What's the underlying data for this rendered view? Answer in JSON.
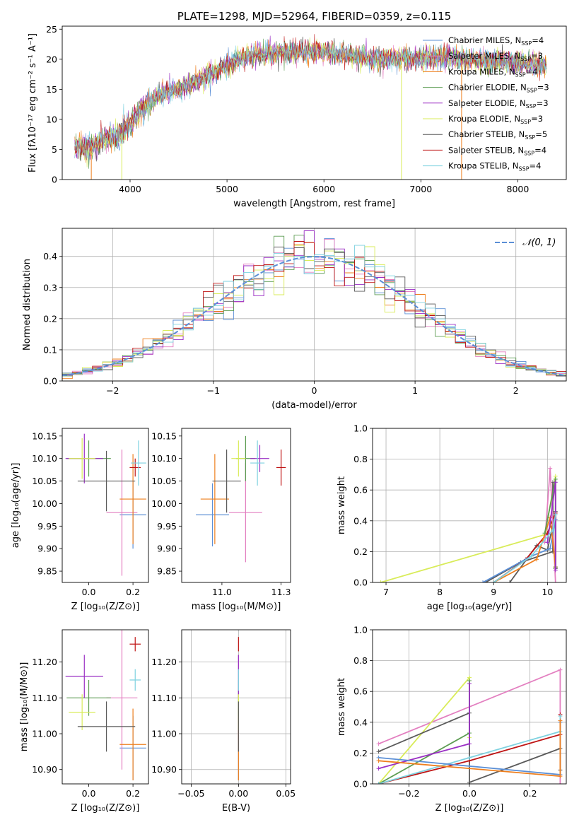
{
  "figure": {
    "title": "PLATE=1298, MJD=52964, FIBERID=0359, z=0.115"
  },
  "colors": {
    "chabrier_miles": "#5b8fd6",
    "salpeter_miles": "#e37fc0",
    "kroupa_miles": "#ee7f1e",
    "chabrier_elodie": "#5c9c52",
    "salpeter_elodie": "#9a2fc4",
    "kroupa_elodie": "#d9ec5a",
    "chabrier_stelib": "#5a5a5a",
    "salpeter_stelib": "#bf1515",
    "kroupa_stelib": "#7fd2e0",
    "grid": "#b0b0b0"
  },
  "chart_data": [
    {
      "id": "spectrum",
      "type": "line",
      "title": "PLATE=1298, MJD=52964, FIBERID=0359, z=0.115",
      "xlabel": "wavelength [Angstrom, rest frame]",
      "ylabel": "Flux [fλ10⁻¹⁷ erg cm⁻² s⁻¹ A⁻¹]",
      "xlim": [
        3300,
        8500
      ],
      "ylim": [
        0,
        25.5
      ],
      "xticks": [
        4000,
        5000,
        6000,
        7000,
        8000
      ],
      "yticks": [
        0,
        5,
        10,
        15,
        20,
        25
      ],
      "grid": false,
      "legend_position": "upper-right",
      "continuum_x": [
        3430,
        3600,
        3800,
        3950,
        4100,
        4300,
        4500,
        4700,
        4900,
        5100,
        5300,
        5500,
        5700,
        5900,
        6100,
        6300,
        6500,
        6700,
        6900,
        7100,
        7300,
        7500,
        7700,
        7900,
        8100,
        8300
      ],
      "continuum_y": [
        5.2,
        5.5,
        7.0,
        8.0,
        11.5,
        14.0,
        15.0,
        16.5,
        18.0,
        20.0,
        20.8,
        21.0,
        21.3,
        21.3,
        21.0,
        20.5,
        20.2,
        20.0,
        20.1,
        20.3,
        20.3,
        19.9,
        19.7,
        19.5,
        19.3,
        19.0
      ],
      "series": [
        {
          "name": "Chabrier MILES, N",
          "sub": "SSP",
          "suffix": "=4",
          "color_key": "chabrier_miles"
        },
        {
          "name": "Salpeter MILES, N",
          "sub": "SSP",
          "suffix": "=3",
          "color_key": "salpeter_miles"
        },
        {
          "name": "Kroupa MILES, N",
          "sub": "SSP",
          "suffix": "=4",
          "color_key": "kroupa_miles"
        },
        {
          "name": "Chabrier ELODIE, N",
          "sub": "SSP",
          "suffix": "=3",
          "color_key": "chabrier_elodie"
        },
        {
          "name": "Salpeter ELODIE, N",
          "sub": "SSP",
          "suffix": "=3",
          "color_key": "salpeter_elodie"
        },
        {
          "name": "Kroupa ELODIE, N",
          "sub": "SSP",
          "suffix": "=3",
          "color_key": "kroupa_elodie"
        },
        {
          "name": "Chabrier STELIB, N",
          "sub": "SSP",
          "suffix": "=5",
          "color_key": "chabrier_stelib"
        },
        {
          "name": "Salpeter STELIB, N",
          "sub": "SSP",
          "suffix": "=4",
          "color_key": "salpeter_stelib"
        },
        {
          "name": "Kroupa STELIB, N",
          "sub": "SSP",
          "suffix": "=4",
          "color_key": "kroupa_stelib"
        }
      ]
    },
    {
      "id": "residuals",
      "type": "line",
      "xlabel": "(data-model)/error",
      "ylabel": "Normed distribution",
      "xlim": [
        -2.5,
        2.5
      ],
      "ylim": [
        0,
        0.49
      ],
      "xticks": [
        -2,
        -1,
        0,
        1,
        2
      ],
      "yticks": [
        0.0,
        0.1,
        0.2,
        0.3,
        0.4
      ],
      "grid": true,
      "legend_position": "upper-right",
      "bin_width": 0.1,
      "gaussian_label": "𝒩(0, 1)"
    },
    {
      "id": "age_vs_Z",
      "type": "scatter",
      "xlabel": "Z [log₁₀(Z/Z⊙)]",
      "ylabel": "age  [log₁₀(age/yr)]",
      "xlim": [
        -0.12,
        0.27
      ],
      "ylim": [
        9.825,
        10.167
      ],
      "xticks": [
        0.0,
        0.2
      ],
      "yticks": [
        9.85,
        9.9,
        9.95,
        10.0,
        10.05,
        10.1,
        10.15
      ],
      "grid": false,
      "points": [
        {
          "color_key": "chabrier_miles",
          "x": 0.2,
          "xerr": 0.06,
          "y": 9.975,
          "yerr": 0.075
        },
        {
          "color_key": "salpeter_miles",
          "x": 0.15,
          "xerr": 0.07,
          "y": 9.98,
          "yerr": 0.14
        },
        {
          "color_key": "kroupa_miles",
          "x": 0.2,
          "xerr": 0.06,
          "y": 10.01,
          "yerr": 0.1
        },
        {
          "color_key": "chabrier_elodie",
          "x": 0.0,
          "xerr": 0.1,
          "y": 10.1,
          "yerr": 0.04
        },
        {
          "color_key": "salpeter_elodie",
          "x": -0.02,
          "xerr": 0.085,
          "y": 10.1,
          "yerr": 0.055
        },
        {
          "color_key": "kroupa_elodie",
          "x": -0.03,
          "xerr": 0.06,
          "y": 10.1,
          "yerr": 0.045
        },
        {
          "color_key": "chabrier_stelib",
          "x": 0.08,
          "xerr": 0.13,
          "y": 10.05,
          "yerr": 0.067
        },
        {
          "color_key": "salpeter_stelib",
          "x": 0.21,
          "xerr": 0.025,
          "y": 10.08,
          "yerr": 0.02
        },
        {
          "color_key": "kroupa_stelib",
          "x": 0.225,
          "xerr": 0.035,
          "y": 10.09,
          "yerr": 0.05
        }
      ]
    },
    {
      "id": "age_vs_mass",
      "type": "scatter",
      "xlabel": "mass [log₁₀(M/M⊙)]",
      "ylabel": "",
      "xlim": [
        10.83,
        11.29
      ],
      "ylim": [
        9.825,
        10.167
      ],
      "xticks": [
        11.0,
        11.25
      ],
      "yticks": [
        9.85,
        9.9,
        9.95,
        10.0,
        10.05,
        10.1,
        10.15
      ],
      "grid": false,
      "points": [
        {
          "color_key": "chabrier_miles",
          "x": 10.96,
          "xerr": 0.07,
          "y": 9.975,
          "yerr": 0.07
        },
        {
          "color_key": "salpeter_miles",
          "x": 11.1,
          "xerr": 0.07,
          "y": 9.98,
          "yerr": 0.11
        },
        {
          "color_key": "kroupa_miles",
          "x": 10.97,
          "xerr": 0.06,
          "y": 10.01,
          "yerr": 0.1
        },
        {
          "color_key": "chabrier_elodie",
          "x": 11.1,
          "xerr": 0.04,
          "y": 10.1,
          "yerr": 0.05
        },
        {
          "color_key": "salpeter_elodie",
          "x": 11.16,
          "xerr": 0.04,
          "y": 10.1,
          "yerr": 0.03
        },
        {
          "color_key": "kroupa_elodie",
          "x": 11.07,
          "xerr": 0.03,
          "y": 10.1,
          "yerr": 0.04
        },
        {
          "color_key": "chabrier_stelib",
          "x": 11.02,
          "xerr": 0.06,
          "y": 10.05,
          "yerr": 0.07
        },
        {
          "color_key": "salpeter_stelib",
          "x": 11.25,
          "xerr": 0.02,
          "y": 10.08,
          "yerr": 0.04
        },
        {
          "color_key": "kroupa_stelib",
          "x": 11.15,
          "xerr": 0.03,
          "y": 10.09,
          "yerr": 0.05
        }
      ]
    },
    {
      "id": "weight_vs_age",
      "type": "line",
      "xlabel": "age  [log₁₀(age/yr)]",
      "ylabel": "mass weight",
      "xlim": [
        6.75,
        10.35
      ],
      "ylim": [
        0,
        1
      ],
      "xticks": [
        7,
        8,
        9,
        10
      ],
      "yticks": [
        0.0,
        0.2,
        0.4,
        0.6,
        0.8,
        1.0
      ],
      "grid": true,
      "series": [
        {
          "color_key": "kroupa_elodie",
          "x": [
            6.9,
            9.95,
            10.15,
            10.15
          ],
          "y": [
            0.0,
            0.31,
            0.69,
            0.1
          ]
        },
        {
          "color_key": "chabrier_stelib",
          "x": [
            9.3,
            9.8,
            10.0,
            10.15,
            10.15
          ],
          "y": [
            0.0,
            0.24,
            0.21,
            0.46,
            0.09
          ]
        },
        {
          "color_key": "chabrier_stelib",
          "x": [
            8.85,
            9.5,
            10.1,
            10.1
          ],
          "y": [
            0.0,
            0.13,
            0.2,
            0.65
          ]
        },
        {
          "color_key": "salpeter_stelib",
          "x": [
            9.0,
            9.6,
            10.0,
            10.15,
            10.15
          ],
          "y": [
            0.0,
            0.15,
            0.32,
            0.45,
            0.1
          ]
        },
        {
          "color_key": "salpeter_miles",
          "x": [
            9.95,
            10.05,
            10.15
          ],
          "y": [
            0.26,
            0.74,
            0.0
          ]
        },
        {
          "color_key": "chabrier_miles",
          "x": [
            8.8,
            9.7,
            10.05,
            10.15
          ],
          "y": [
            0.0,
            0.17,
            0.22,
            0.41
          ]
        },
        {
          "color_key": "kroupa_miles",
          "x": [
            9.0,
            9.8,
            10.05,
            10.15
          ],
          "y": [
            0.0,
            0.15,
            0.42,
            0.1
          ]
        },
        {
          "color_key": "chabrier_elodie",
          "x": [
            9.95,
            10.15,
            10.15
          ],
          "y": [
            0.32,
            0.67,
            0.1
          ]
        },
        {
          "color_key": "salpeter_elodie",
          "x": [
            10.0,
            10.15,
            10.15
          ],
          "y": [
            0.26,
            0.65,
            0.08
          ]
        },
        {
          "color_key": "kroupa_stelib",
          "x": [
            9.0,
            9.7,
            10.1,
            10.15
          ],
          "y": [
            0.0,
            0.17,
            0.34,
            0.44
          ]
        }
      ]
    },
    {
      "id": "mass_vs_Z",
      "type": "scatter",
      "xlabel": "Z [log₁₀(Z/Z⊙)]",
      "ylabel": "mass [log₁₀(M/M⊙)]",
      "xlim": [
        -0.12,
        0.27
      ],
      "ylim": [
        10.86,
        11.29
      ],
      "xticks": [
        0.0,
        0.2
      ],
      "yticks": [
        10.9,
        11.0,
        11.1,
        11.2
      ],
      "grid": false,
      "points": [
        {
          "color_key": "chabrier_miles",
          "x": 0.2,
          "xerr": 0.06,
          "y": 10.96,
          "yerr": 0.09
        },
        {
          "color_key": "salpeter_miles",
          "x": 0.15,
          "xerr": 0.07,
          "y": 11.1,
          "yerr": 0.2
        },
        {
          "color_key": "kroupa_miles",
          "x": 0.2,
          "xerr": 0.06,
          "y": 10.97,
          "yerr": 0.1
        },
        {
          "color_key": "chabrier_elodie",
          "x": 0.0,
          "xerr": 0.1,
          "y": 11.1,
          "yerr": 0.05
        },
        {
          "color_key": "salpeter_elodie",
          "x": -0.02,
          "xerr": 0.085,
          "y": 11.16,
          "yerr": 0.06
        },
        {
          "color_key": "kroupa_elodie",
          "x": -0.03,
          "xerr": 0.06,
          "y": 11.06,
          "yerr": 0.05
        },
        {
          "color_key": "chabrier_stelib",
          "x": 0.08,
          "xerr": 0.13,
          "y": 11.02,
          "yerr": 0.07
        },
        {
          "color_key": "salpeter_stelib",
          "x": 0.21,
          "xerr": 0.025,
          "y": 11.25,
          "yerr": 0.02
        },
        {
          "color_key": "kroupa_stelib",
          "x": 0.21,
          "xerr": 0.025,
          "y": 11.15,
          "yerr": 0.03
        }
      ]
    },
    {
      "id": "mass_vs_EBV",
      "type": "scatter",
      "xlabel": "E(B-V)",
      "ylabel": "",
      "xlim": [
        -0.06,
        0.055
      ],
      "ylim": [
        10.86,
        11.29
      ],
      "xticks": [
        -0.05,
        0.0,
        0.05
      ],
      "yticks": [
        10.9,
        11.0,
        11.1,
        11.2
      ],
      "grid": true,
      "points": [
        {
          "color_key": "chabrier_miles",
          "x": 0.0,
          "xerr": 0.0,
          "y": 10.96,
          "yerr": 0.09
        },
        {
          "color_key": "salpeter_miles",
          "x": 0.0,
          "xerr": 0.0,
          "y": 11.1,
          "yerr": 0.12
        },
        {
          "color_key": "kroupa_miles",
          "x": 0.0,
          "xerr": 0.0,
          "y": 10.97,
          "yerr": 0.1
        },
        {
          "color_key": "chabrier_elodie",
          "x": 0.0,
          "xerr": 0.0,
          "y": 11.1,
          "yerr": 0.05
        },
        {
          "color_key": "salpeter_elodie",
          "x": 0.0,
          "xerr": 0.0,
          "y": 11.16,
          "yerr": 0.06
        },
        {
          "color_key": "kroupa_elodie",
          "x": 0.0,
          "xerr": 0.0,
          "y": 11.06,
          "yerr": 0.05
        },
        {
          "color_key": "chabrier_stelib",
          "x": 0.0,
          "xerr": 0.0,
          "y": 11.02,
          "yerr": 0.07
        },
        {
          "color_key": "salpeter_stelib",
          "x": 0.0,
          "xerr": 0.0,
          "y": 11.25,
          "yerr": 0.02
        },
        {
          "color_key": "kroupa_stelib",
          "x": 0.0,
          "xerr": 0.0,
          "y": 11.15,
          "yerr": 0.03
        }
      ]
    },
    {
      "id": "weight_vs_Z",
      "type": "line",
      "xlabel": "Z [log₁₀(Z/Z⊙)]",
      "ylabel": "mass weight",
      "xlim": [
        -0.32,
        0.32
      ],
      "ylim": [
        0,
        1
      ],
      "xticks": [
        -0.2,
        0.0,
        0.2
      ],
      "yticks": [
        0.0,
        0.2,
        0.4,
        0.6,
        0.8,
        1.0
      ],
      "grid": true,
      "series": [
        {
          "color_key": "salpeter_miles",
          "x": [
            -0.3,
            0.3,
            0.3
          ],
          "y": [
            0.26,
            0.74,
            0.0
          ]
        },
        {
          "color_key": "kroupa_elodie",
          "x": [
            -0.3,
            0.0,
            0.0
          ],
          "y": [
            0.0,
            0.69,
            0.3
          ]
        },
        {
          "color_key": "chabrier_stelib",
          "x": [
            -0.3,
            0.0,
            0.0
          ],
          "y": [
            0.21,
            0.46,
            0.0
          ]
        },
        {
          "color_key": "chabrier_stelib",
          "x": [
            0.0,
            0.3,
            0.3
          ],
          "y": [
            0.01,
            0.23,
            0.09
          ]
        },
        {
          "color_key": "chabrier_elodie",
          "x": [
            -0.3,
            0.0,
            0.0
          ],
          "y": [
            0.0,
            0.33,
            0.67
          ]
        },
        {
          "color_key": "salpeter_elodie",
          "x": [
            -0.3,
            0.0,
            0.0
          ],
          "y": [
            0.1,
            0.26,
            0.65
          ]
        },
        {
          "color_key": "salpeter_stelib",
          "x": [
            -0.3,
            0.0,
            0.3,
            0.3
          ],
          "y": [
            0.0,
            0.15,
            0.32,
            0.45
          ]
        },
        {
          "color_key": "kroupa_stelib",
          "x": [
            -0.3,
            0.0,
            0.3,
            0.3
          ],
          "y": [
            0.0,
            0.17,
            0.34,
            0.44
          ]
        },
        {
          "color_key": "chabrier_miles",
          "x": [
            -0.3,
            0.3,
            0.3
          ],
          "y": [
            0.17,
            0.06,
            0.4
          ]
        },
        {
          "color_key": "kroupa_miles",
          "x": [
            -0.3,
            0.3,
            0.3
          ],
          "y": [
            0.15,
            0.05,
            0.41
          ]
        }
      ]
    }
  ]
}
